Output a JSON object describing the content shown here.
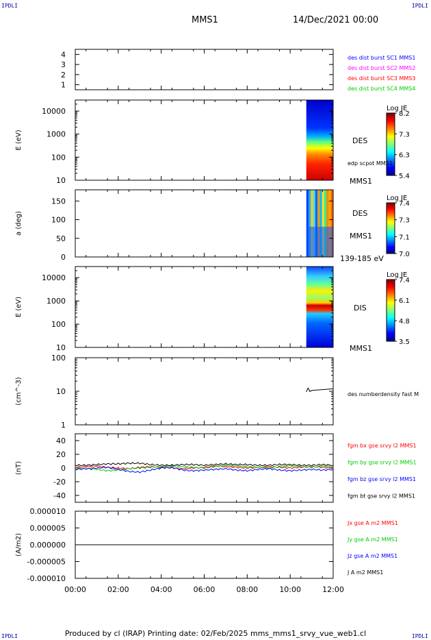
{
  "header": {
    "corner_tl": "IPDLI",
    "corner_tr": "IPDLI",
    "corner_bl": "IPDLI",
    "corner_br": "IPDLI",
    "spacecraft": "MMS1",
    "date": "14/Dec/2021 00:00"
  },
  "footer": {
    "text": "Produced by cl (IRAP)   Printing date: 02/Feb/2025   mms_mms1_srvy_vue_web1.cl"
  },
  "colors": {
    "blue": "#0000ff",
    "magenta": "#ff00ff",
    "red": "#ff0000",
    "green": "#00cc00",
    "black": "#000000"
  },
  "chart_data": [
    {
      "type": "line",
      "id": "burst",
      "ylim": [
        0.5,
        4.5
      ],
      "yticks": [
        "1",
        "2",
        "3",
        "4"
      ],
      "legend": [
        {
          "name": "des dist burst SC1 MMS1",
          "color": "#0000ff"
        },
        {
          "name": "des dist burst SC2 MMS2",
          "color": "#ff00ff"
        },
        {
          "name": "des dist burst SC3 MMS3",
          "color": "#ff0000"
        },
        {
          "name": "des dist burst SC4 MMS4",
          "color": "#00cc00"
        }
      ]
    },
    {
      "type": "heatmap",
      "id": "des-energy",
      "ylabel": "E (eV)",
      "yscale": "log",
      "ylim": [
        10,
        30000
      ],
      "yticks": [
        "10",
        "100",
        "1000",
        "10000"
      ],
      "data_x_range": [
        "10:45",
        "12:00"
      ],
      "labels": [
        "DES",
        "edp scpot MMS1",
        "MMS1"
      ],
      "colorbar": {
        "label": "Log JE",
        "ticks": [
          "8.2",
          "7.3",
          "6.3",
          "5.4"
        ],
        "range": [
          5.4,
          8.2
        ]
      }
    },
    {
      "type": "heatmap",
      "id": "des-pitch",
      "ylabel": "a (deg)",
      "ylim": [
        0,
        180
      ],
      "yticks": [
        "0",
        "50",
        "100",
        "150"
      ],
      "data_x_range": [
        "10:45",
        "12:00"
      ],
      "labels": [
        "DES",
        "MMS1",
        "139-185 eV"
      ],
      "colorbar": {
        "label": "Log JE",
        "ticks": [
          "7.4",
          "7.3",
          "7.1",
          "7.0"
        ],
        "range": [
          7.0,
          7.4
        ]
      }
    },
    {
      "type": "heatmap",
      "id": "dis-energy",
      "ylabel": "E (eV)",
      "yscale": "log",
      "ylim": [
        10,
        30000
      ],
      "yticks": [
        "10",
        "100",
        "1000",
        "10000"
      ],
      "data_x_range": [
        "10:45",
        "12:00"
      ],
      "labels": [
        "DIS",
        "MMS1"
      ],
      "colorbar": {
        "label": "Log JE",
        "ticks": [
          "7.4",
          "6.1",
          "4.8",
          "3.5"
        ],
        "range": [
          3.5,
          7.4
        ]
      }
    },
    {
      "type": "line",
      "id": "density",
      "ylabel": "(cm^-3)",
      "yscale": "log",
      "ylim": [
        1,
        100
      ],
      "yticks": [
        "1",
        "10",
        "100"
      ],
      "series": [
        {
          "name": "des numberdensity fast M",
          "color": "#000000",
          "x": [
            "10:45",
            "10:50",
            "10:55",
            "11:00",
            "11:10",
            "11:20",
            "11:30",
            "11:40",
            "11:50",
            "12:00"
          ],
          "values": [
            9.5,
            12.5,
            9.8,
            10.6,
            10.8,
            11.0,
            11.2,
            11.4,
            11.6,
            11.8
          ]
        }
      ]
    },
    {
      "type": "line",
      "id": "fgm",
      "ylabel": "(nT)",
      "ylim": [
        -50,
        50
      ],
      "yticks": [
        "-40",
        "-20",
        "0",
        "20",
        "40"
      ],
      "x": [
        "00:00",
        "00:30",
        "01:00",
        "01:30",
        "02:00",
        "02:30",
        "03:00",
        "03:30",
        "04:00",
        "04:30",
        "05:00",
        "05:30",
        "06:00",
        "06:30",
        "07:00",
        "07:30",
        "08:00",
        "08:30",
        "09:00",
        "09:30",
        "10:00",
        "10:30",
        "11:00",
        "11:30",
        "12:00"
      ],
      "series": [
        {
          "name": "fgm bx gse srvy l2 MMS1",
          "color": "#ff0000",
          "values": [
            1,
            2,
            3,
            1,
            0,
            -1,
            1,
            2,
            1,
            0,
            -1,
            0,
            1,
            3,
            2,
            1,
            0,
            1,
            2,
            1,
            0,
            1,
            2,
            1,
            0
          ]
        },
        {
          "name": "fgm by gse srvy l2 MMS1",
          "color": "#00cc00",
          "values": [
            0,
            -1,
            -2,
            -4,
            -3,
            -1,
            0,
            1,
            2,
            3,
            2,
            1,
            0,
            2,
            4,
            3,
            2,
            1,
            0,
            2,
            3,
            2,
            1,
            3,
            2
          ]
        },
        {
          "name": "fgm bz gse srvy l2 MMS1",
          "color": "#0000ff",
          "values": [
            -2,
            -1,
            0,
            1,
            -2,
            -5,
            -6,
            -3,
            0,
            1,
            -3,
            -4,
            -3,
            -2,
            -1,
            -3,
            -4,
            -2,
            -1,
            -3,
            -4,
            -3,
            -2,
            -3,
            -2
          ]
        },
        {
          "name": "fgm bt gse srvy l2 MMS1",
          "color": "#000000",
          "values": [
            4,
            4,
            5,
            6,
            6,
            7,
            7,
            5,
            4,
            4,
            5,
            5,
            4,
            5,
            6,
            5,
            5,
            4,
            4,
            5,
            5,
            4,
            4,
            5,
            4
          ]
        }
      ]
    },
    {
      "type": "line",
      "id": "current",
      "ylabel": "(A/m2)",
      "ylim": [
        -1e-05,
        1e-05
      ],
      "yticks": [
        "-0.000010",
        "-0.000005",
        "0.000000",
        "0.000005",
        "0.000010"
      ],
      "xticks": [
        "00:00",
        "02:00",
        "04:00",
        "06:00",
        "08:00",
        "10:00",
        "12:00"
      ],
      "legend": [
        {
          "name": "Jx gse A m2 MMS1",
          "color": "#ff0000"
        },
        {
          "name": "Jy gse A m2 MMS1",
          "color": "#00cc00"
        },
        {
          "name": "Jz gse A m2 MMS1",
          "color": "#0000ff"
        },
        {
          "name": "J A m2 MMS1",
          "color": "#000000"
        }
      ],
      "series": [
        {
          "name": "J A m2 MMS1",
          "color": "#000000",
          "x": [
            "00:00",
            "02:00",
            "04:00",
            "06:00",
            "08:00",
            "10:00",
            "12:00"
          ],
          "values": [
            0,
            0,
            0,
            0,
            0,
            0,
            0
          ]
        }
      ]
    }
  ]
}
